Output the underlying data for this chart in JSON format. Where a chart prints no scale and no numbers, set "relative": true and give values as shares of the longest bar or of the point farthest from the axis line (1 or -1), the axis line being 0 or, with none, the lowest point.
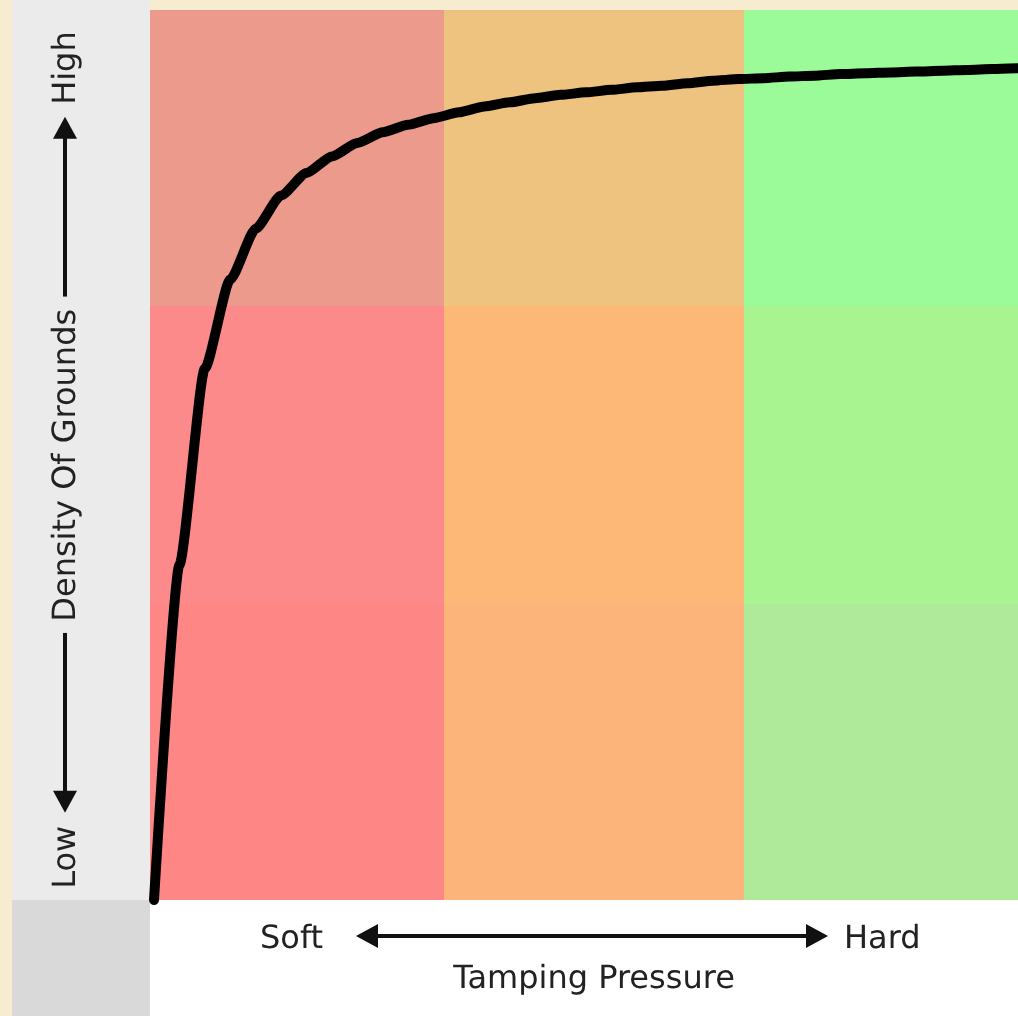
{
  "chart_data": {
    "type": "line",
    "relative": true,
    "xlabel": "Tamping Pressure",
    "ylabel": "Density Of Grounds",
    "annotations": [
      "High",
      "Low",
      "Soft",
      "Hard"
    ],
    "marker": "none",
    "categories": [
      null,
      null,
      null,
      null,
      null,
      null,
      null,
      null,
      null,
      null,
      null,
      null,
      null,
      null,
      null,
      null,
      null,
      null,
      null,
      null,
      null,
      null,
      null,
      null,
      null,
      null,
      null,
      null,
      null,
      null,
      null,
      null,
      null,
      null,
      null
    ],
    "series": [
      {
        "color": "#000000",
        "values": [
          0,
          0.403,
          0.639,
          0.746,
          0.807,
          0.847,
          0.874,
          0.894,
          0.91,
          0.923,
          0.932,
          0.94,
          0.947,
          0.954,
          0.959,
          0.964,
          0.968,
          0.971,
          0.974,
          0.977,
          0.979,
          0.982,
          0.985,
          0.987,
          0.988,
          0.99,
          0.991,
          0.993,
          0.994,
          0.995,
          0.996,
          0.997,
          0.998,
          0.999,
          1.0
        ]
      }
    ]
  }
}
